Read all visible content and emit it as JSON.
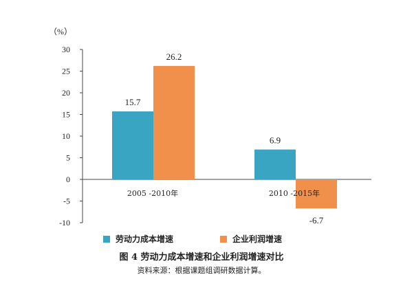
{
  "chart_data": {
    "type": "bar",
    "unit": "（%）",
    "categories": [
      "2005 -2010年",
      "2010 -2015年"
    ],
    "series": [
      {
        "name": "劳动力成本增速",
        "color": "#3aa5c2",
        "values": [
          15.7,
          6.9
        ]
      },
      {
        "name": "企业利润增速",
        "color": "#f0904a",
        "values": [
          26.2,
          -6.7
        ]
      }
    ],
    "data_labels": [
      [
        "15.7",
        "6.9"
      ],
      [
        "26.2",
        "-6.7"
      ]
    ],
    "y_ticks": [
      30,
      25,
      20,
      15,
      10,
      5,
      0,
      -5,
      -10
    ],
    "y_tick_labels": [
      "30",
      "25",
      "20",
      "15",
      "10",
      "5",
      "0",
      "-5",
      "-10"
    ],
    "ylim": [
      -10,
      30
    ],
    "grid": false,
    "legend_position": "bottom"
  },
  "caption": {
    "figure_title": "图 4  劳动力成本增速和企业利润增速对比",
    "source": "资料来源：根据课题组调研数据计算。"
  }
}
